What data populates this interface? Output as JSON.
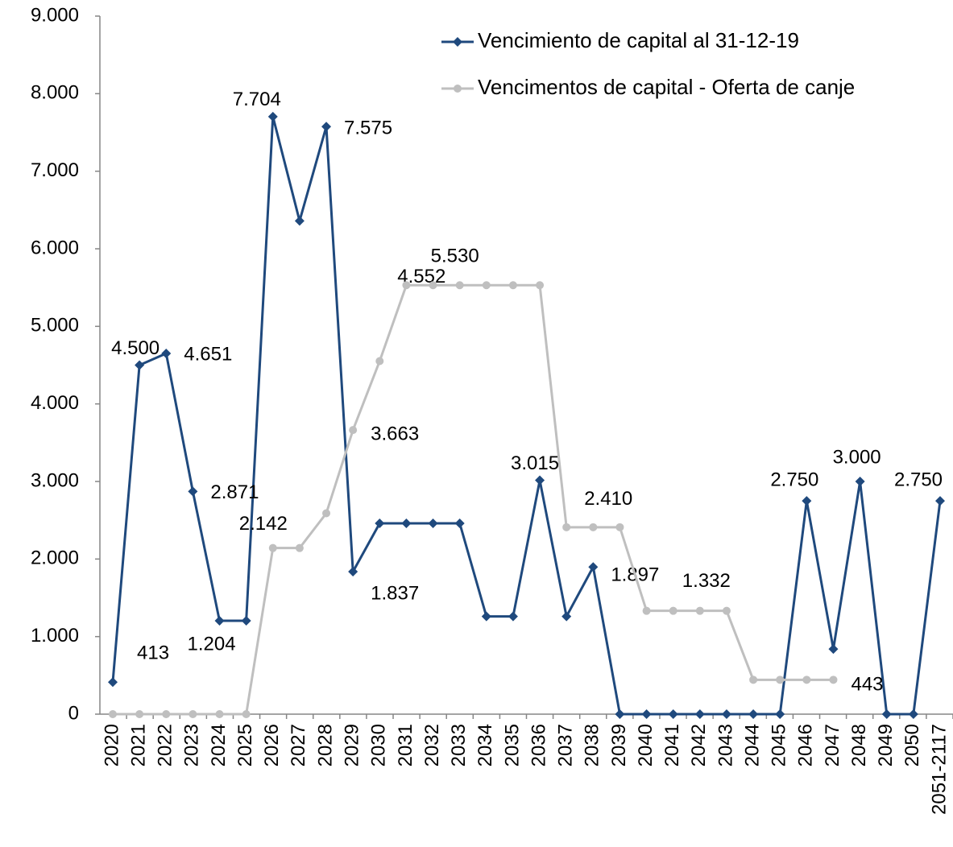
{
  "chart_data": {
    "type": "line",
    "categories": [
      "2020",
      "2021",
      "2022",
      "2023",
      "2024",
      "2025",
      "2026",
      "2027",
      "2028",
      "2029",
      "2030",
      "2031",
      "2032",
      "2033",
      "2034",
      "2035",
      "2036",
      "2037",
      "2038",
      "2039",
      "2040",
      "2041",
      "2042",
      "2043",
      "2044",
      "2045",
      "2046",
      "2047",
      "2048",
      "2049",
      "2050",
      "2051-2117"
    ],
    "series": [
      {
        "name": "Vencimiento de capital al 31-12-19",
        "color": "#1f497d",
        "marker": "diamond",
        "values": [
          413,
          4500,
          4651,
          2871,
          1204,
          1204,
          7704,
          6360,
          7575,
          1837,
          2460,
          2460,
          2460,
          2460,
          1260,
          1260,
          3015,
          1260,
          1897,
          0,
          0,
          0,
          0,
          0,
          0,
          0,
          2750,
          840,
          3000,
          0,
          0,
          2750
        ],
        "value_labels": [
          "413",
          "4.500",
          "4.651",
          "2.871",
          "1.204",
          null,
          "7.704",
          null,
          "7.575",
          "1.837",
          null,
          null,
          null,
          null,
          null,
          null,
          "3.015",
          null,
          "1.897",
          null,
          null,
          null,
          null,
          null,
          null,
          null,
          "2.750",
          null,
          "3.000",
          null,
          null,
          "2.750"
        ]
      },
      {
        "name": "Vencimentos de capital - Oferta de canje",
        "color": "#bfbfbf",
        "marker": "circle",
        "values": [
          0,
          0,
          0,
          0,
          0,
          0,
          2142,
          2142,
          2590,
          3663,
          4552,
          5530,
          5530,
          5530,
          5530,
          5530,
          5530,
          2410,
          2410,
          2410,
          1332,
          1332,
          1332,
          1332,
          443,
          443,
          443,
          443,
          null,
          null,
          null,
          null
        ],
        "value_labels": [
          null,
          null,
          null,
          null,
          null,
          null,
          "2.142",
          null,
          null,
          "3.663",
          "4.552",
          null,
          null,
          "5.530",
          null,
          null,
          null,
          "2.410",
          null,
          null,
          null,
          null,
          "1.332",
          null,
          null,
          null,
          null,
          "443",
          null,
          null,
          null,
          null
        ]
      }
    ],
    "ylim": [
      0,
      9000
    ],
    "yticks": [
      0,
      {
        "value": 1000,
        "label": "1.000"
      },
      {
        "value": 2000,
        "label": "2.000"
      },
      {
        "value": 3000,
        "label": "3.000"
      },
      {
        "value": 4000,
        "label": "4.000"
      },
      {
        "value": 5000,
        "label": "5.000"
      },
      {
        "value": 6000,
        "label": "6.000"
      },
      {
        "value": 7000,
        "label": "7.000"
      },
      {
        "value": 8000,
        "label": "8.000"
      },
      {
        "value": 9000,
        "label": "9.000"
      }
    ],
    "legend": "top-right"
  }
}
